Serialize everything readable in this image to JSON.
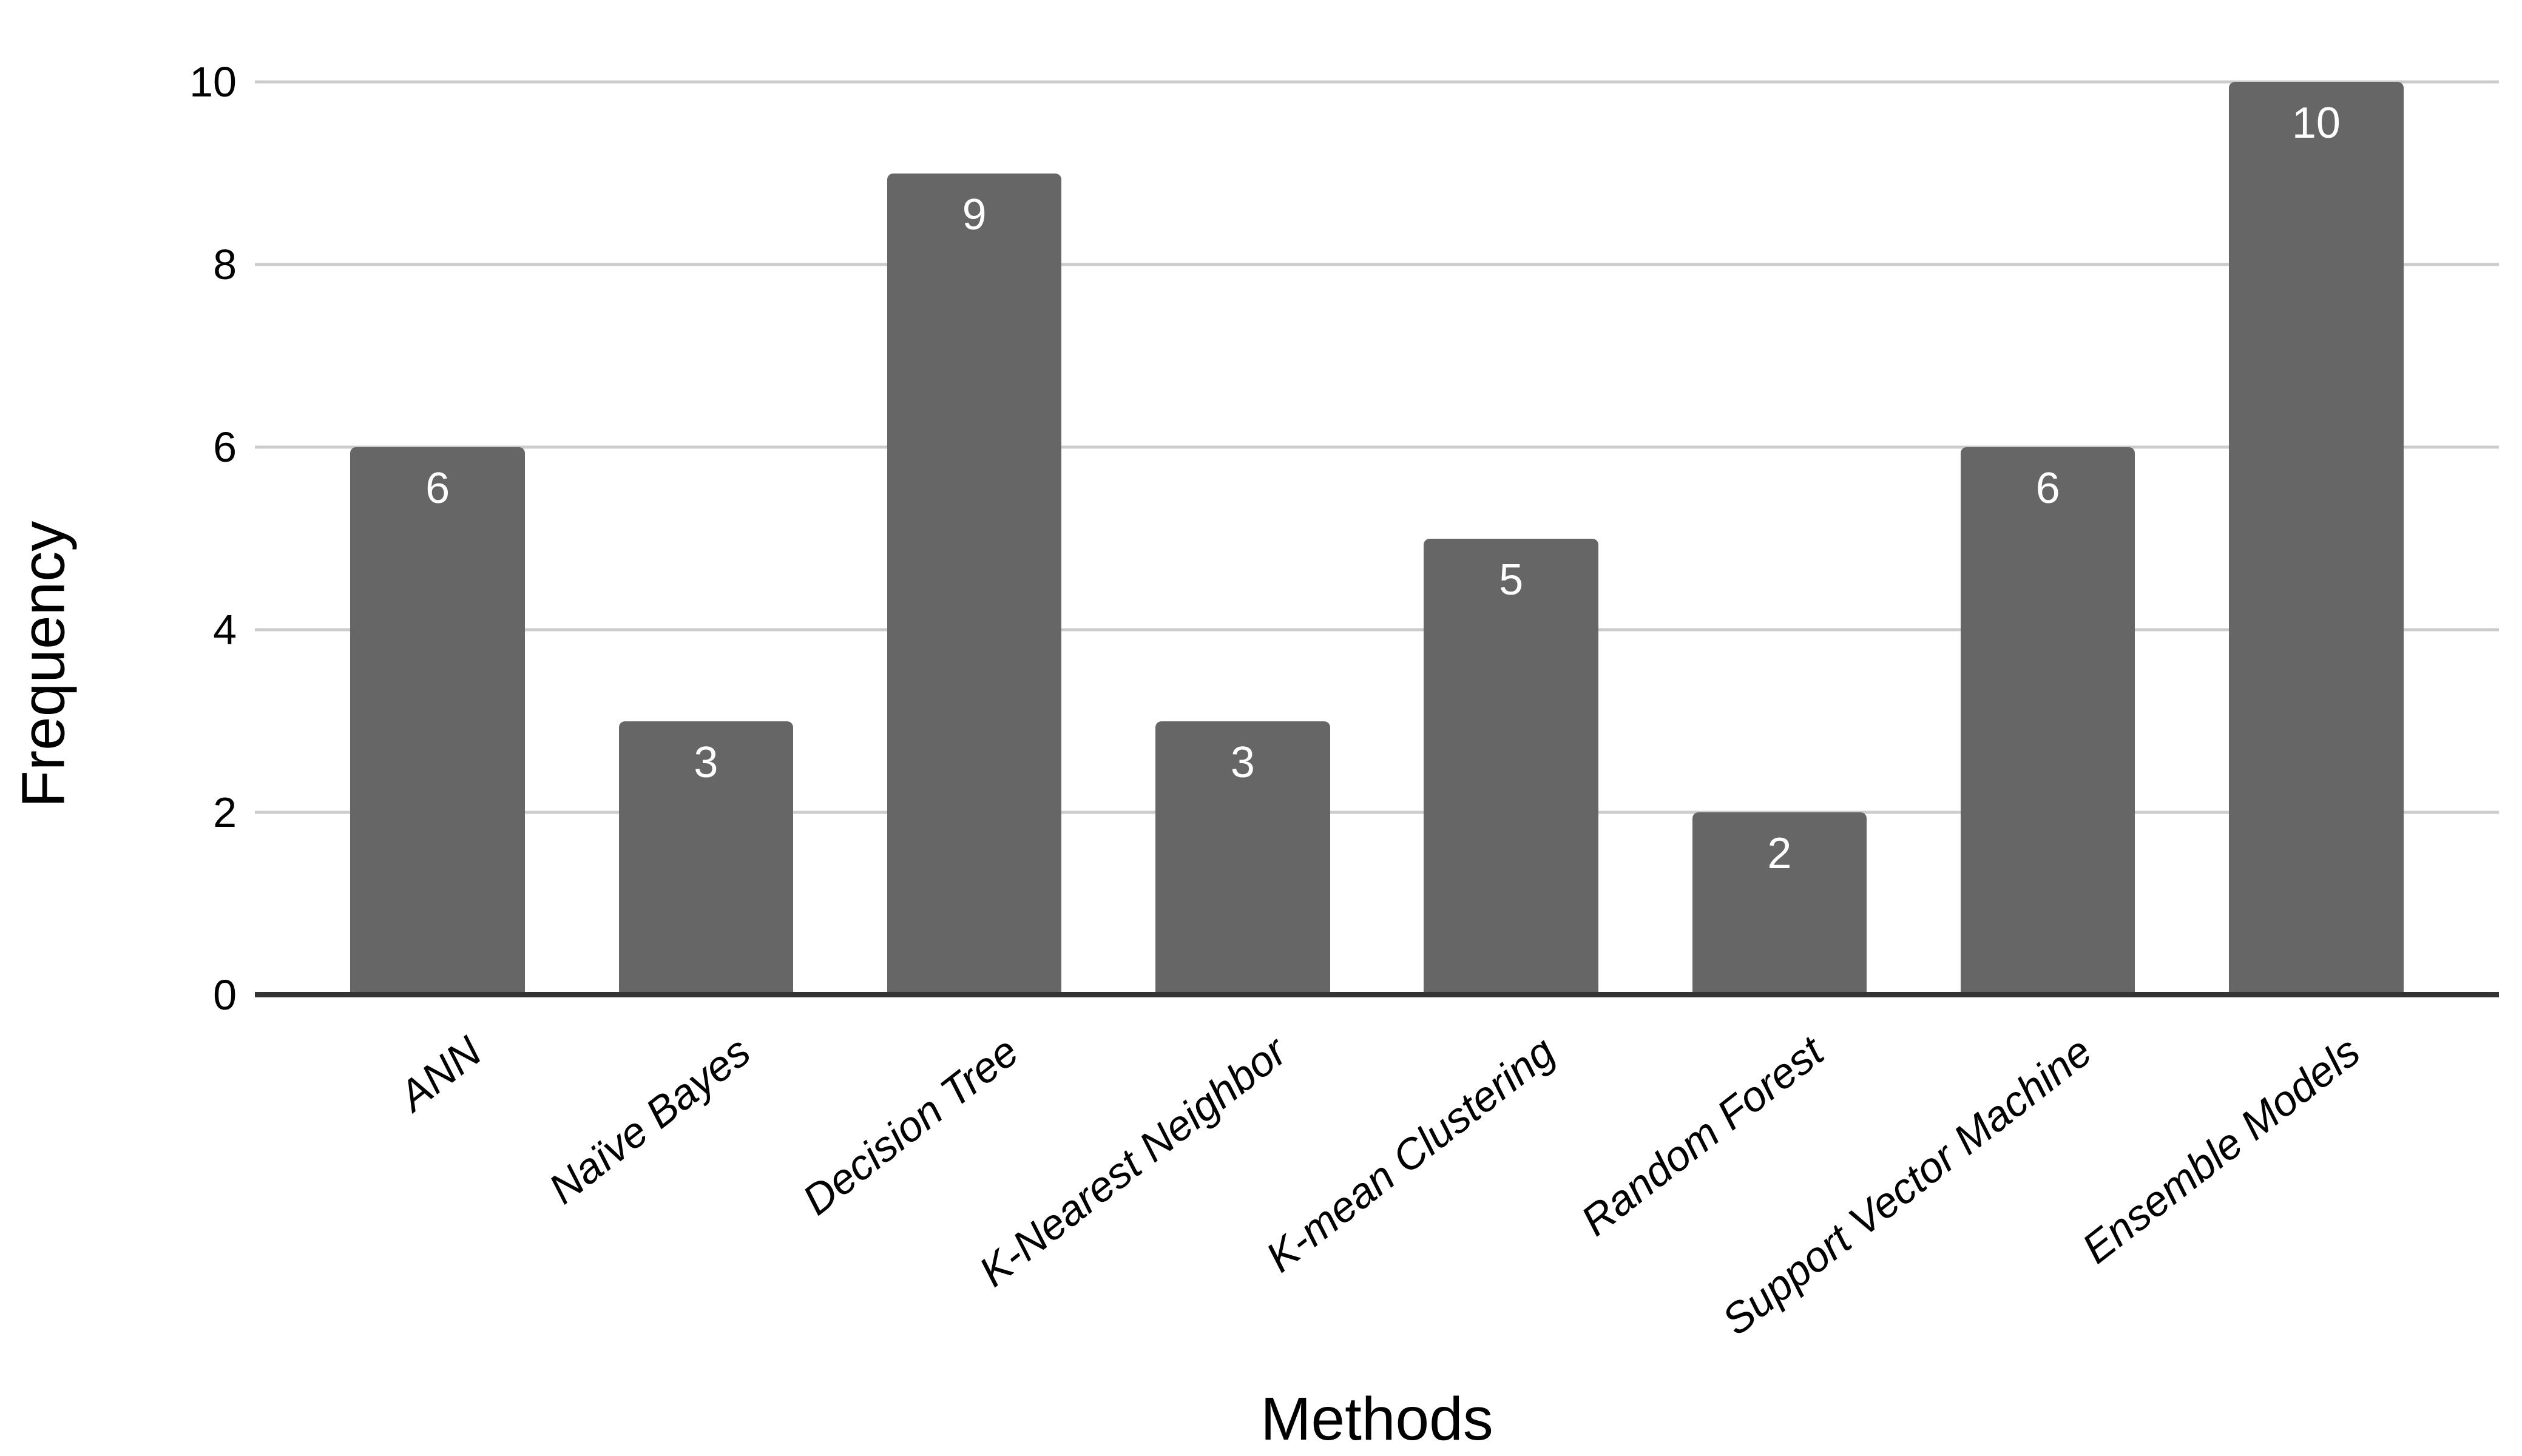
{
  "chart_data": {
    "type": "bar",
    "title": "",
    "categories": [
      "ANN",
      "Naïve Bayes",
      "Decision Tree",
      "K-Nearest Neighbor",
      "K-mean Clustering",
      "Random Forest",
      "Support Vector Machine",
      "Ensemble Models"
    ],
    "values": [
      6,
      3,
      9,
      3,
      5,
      2,
      6,
      10
    ],
    "xlabel": "Methods",
    "ylabel": "Frequency",
    "ylim": [
      0,
      10
    ],
    "yticks": [
      0,
      2,
      4,
      6,
      8,
      10
    ],
    "grid": "horizontal",
    "legend": "none",
    "bar_value_labels_shown": true,
    "x_label_rotation_deg": -38,
    "colors": {
      "bar": "#666666",
      "bar_value_label": "#ffffff",
      "gridline": "#cccccc",
      "axis_line": "#333333",
      "text": "#000000",
      "background": "#ffffff"
    }
  }
}
